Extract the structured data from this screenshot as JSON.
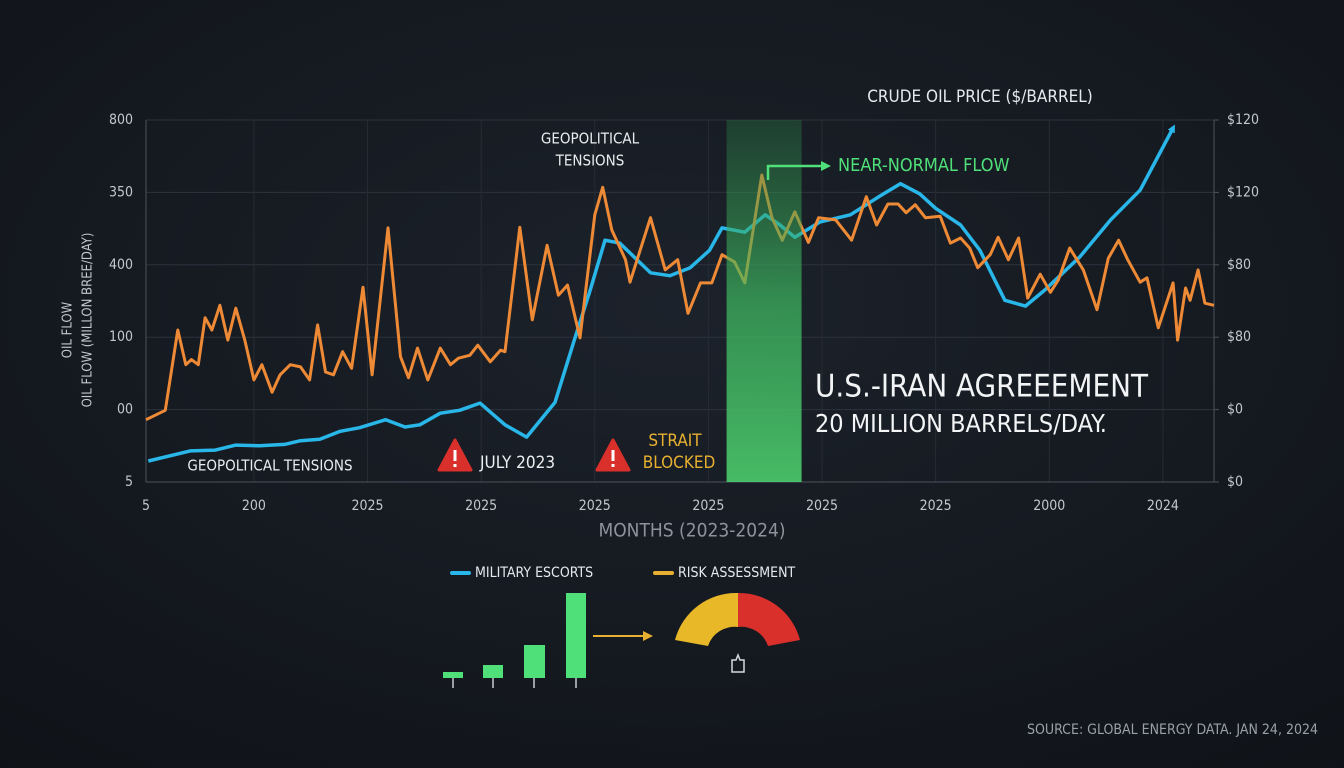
{
  "chart_data": {
    "type": "line",
    "title": "CRUDE OIL PRICE ($/BARREL)",
    "ylabel": [
      "OIL FLOW",
      "OIL FLOW (MILLON BREE/DAY)"
    ],
    "xlabel": "MONTHS (2023-2024)",
    "xlim": [
      0,
      9.4
    ],
    "xticks": [
      {
        "value": 0,
        "label": "5"
      },
      {
        "value": 0.95,
        "label": "200"
      },
      {
        "value": 1.95,
        "label": "2025"
      },
      {
        "value": 2.95,
        "label": "2025"
      },
      {
        "value": 3.95,
        "label": "2025"
      },
      {
        "value": 4.95,
        "label": "2025"
      },
      {
        "value": 5.95,
        "label": "2025"
      },
      {
        "value": 6.95,
        "label": "2025"
      },
      {
        "value": 7.95,
        "label": "2000"
      },
      {
        "value": 8.95,
        "label": "2024"
      }
    ],
    "ylim": [
      0,
      5
    ],
    "yticks": [
      {
        "value": 5,
        "label": "800"
      },
      {
        "value": 4,
        "label": "350"
      },
      {
        "value": 3,
        "label": "400"
      },
      {
        "value": 2,
        "label": "100"
      },
      {
        "value": 1,
        "label": "00"
      },
      {
        "value": 0,
        "label": "5"
      }
    ],
    "y2lim": [
      0,
      5
    ],
    "y2ticks": [
      {
        "value": 5,
        "label": "$120"
      },
      {
        "value": 4,
        "label": "$120"
      },
      {
        "value": 3,
        "label": "$80"
      },
      {
        "value": 2,
        "label": "$80"
      },
      {
        "value": 1,
        "label": "$0"
      },
      {
        "value": 0,
        "label": "$0"
      }
    ],
    "grid": true,
    "highlight_x": [
      5.11,
      5.77
    ],
    "series": [
      {
        "name": "MILITARY ESCORTS",
        "color": "#29b6e8",
        "x": [
          0.02,
          0.39,
          0.61,
          0.79,
          1.0,
          1.22,
          1.36,
          1.53,
          1.71,
          1.88,
          2.11,
          2.28,
          2.41,
          2.59,
          2.76,
          2.94,
          3.16,
          3.35,
          3.6,
          3.77,
          3.91,
          4.04,
          4.17,
          4.44,
          4.61,
          4.79,
          4.96,
          5.07,
          5.27,
          5.45,
          5.58,
          5.71,
          5.93,
          6.2,
          6.46,
          6.64,
          6.81,
          6.95,
          7.17,
          7.34,
          7.56,
          7.74,
          7.91,
          8.22,
          8.49,
          8.75,
          9.04
        ],
        "values": [
          0.29,
          0.43,
          0.44,
          0.51,
          0.5,
          0.52,
          0.57,
          0.59,
          0.7,
          0.75,
          0.86,
          0.76,
          0.79,
          0.95,
          0.99,
          1.09,
          0.79,
          0.62,
          1.1,
          1.96,
          2.65,
          3.34,
          3.3,
          2.89,
          2.85,
          2.96,
          3.2,
          3.51,
          3.45,
          3.69,
          3.55,
          3.38,
          3.59,
          3.69,
          3.95,
          4.12,
          3.98,
          3.78,
          3.55,
          3.2,
          2.51,
          2.43,
          2.65,
          3.11,
          3.62,
          4.03,
          4.89
        ]
      },
      {
        "name": "RISK ASSESSMENT",
        "color": "#ee8a36",
        "x": [
          0.0,
          0.17,
          0.28,
          0.35,
          0.4,
          0.46,
          0.52,
          0.58,
          0.65,
          0.72,
          0.79,
          0.87,
          0.95,
          1.02,
          1.11,
          1.18,
          1.27,
          1.36,
          1.44,
          1.51,
          1.58,
          1.65,
          1.73,
          1.81,
          1.91,
          1.99,
          2.13,
          2.24,
          2.31,
          2.39,
          2.48,
          2.59,
          2.68,
          2.75,
          2.85,
          2.92,
          3.03,
          3.12,
          3.16,
          3.29,
          3.4,
          3.53,
          3.63,
          3.71,
          3.82,
          3.95,
          4.02,
          4.1,
          4.22,
          4.26,
          4.44,
          4.57,
          4.68,
          4.77,
          4.88,
          4.98,
          5.07,
          5.18,
          5.27,
          5.42,
          5.51,
          5.6,
          5.71,
          5.83,
          5.92,
          6.07,
          6.21,
          6.34,
          6.43,
          6.53,
          6.62,
          6.69,
          6.77,
          6.86,
          6.99,
          7.08,
          7.17,
          7.25,
          7.32,
          7.43,
          7.5,
          7.59,
          7.68,
          7.76,
          7.87,
          7.96,
          8.03,
          8.13,
          8.25,
          8.37,
          8.47,
          8.56,
          8.64,
          8.75,
          8.81,
          8.91,
          9.04,
          9.08,
          9.15,
          9.19,
          9.26,
          9.32,
          9.4
        ],
        "values": [
          0.86,
          0.99,
          2.1,
          1.62,
          1.69,
          1.62,
          2.27,
          2.1,
          2.44,
          1.96,
          2.4,
          1.96,
          1.41,
          1.62,
          1.24,
          1.48,
          1.62,
          1.59,
          1.41,
          2.17,
          1.52,
          1.48,
          1.8,
          1.57,
          2.69,
          1.48,
          3.51,
          1.73,
          1.44,
          1.85,
          1.41,
          1.85,
          1.62,
          1.71,
          1.75,
          1.89,
          1.66,
          1.82,
          1.8,
          3.52,
          2.24,
          3.27,
          2.58,
          2.72,
          1.99,
          3.69,
          4.07,
          3.48,
          3.07,
          2.76,
          3.65,
          2.93,
          3.07,
          2.33,
          2.75,
          2.75,
          3.14,
          3.04,
          2.75,
          4.24,
          3.65,
          3.34,
          3.73,
          3.31,
          3.65,
          3.62,
          3.34,
          3.94,
          3.55,
          3.84,
          3.84,
          3.72,
          3.83,
          3.65,
          3.67,
          3.3,
          3.37,
          3.23,
          2.96,
          3.14,
          3.38,
          3.07,
          3.37,
          2.54,
          2.87,
          2.62,
          2.79,
          3.23,
          2.93,
          2.38,
          3.09,
          3.34,
          3.07,
          2.76,
          2.82,
          2.13,
          2.75,
          1.96,
          2.68,
          2.51,
          2.93,
          2.47,
          2.44
        ]
      }
    ],
    "annotations": [
      "GEOPOLITICAL",
      "TENSIONS",
      "NEAR-NORMAL FLOW",
      "U.S.-IRAN AGREEEMENT",
      "20 MILLION BARRELS/DAY.",
      "GEOPOLTICAL TENSIONS",
      "JULY 2023",
      "STRAIT",
      "BLOCKED"
    ],
    "source": "SOURCE: GLOBAL ENERGY DATA. JAN 24, 2024"
  }
}
